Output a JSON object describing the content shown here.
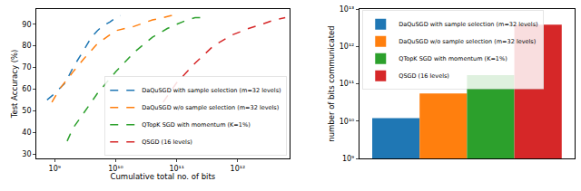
{
  "chart_data": [
    {
      "type": "line",
      "x_label": "Cumulative total no. of bits",
      "y_label": "Test Accuracy (%)",
      "log": "x",
      "grid": false,
      "legend": "lower right",
      "line_style": "dashed",
      "xlim": [
        500000000,
        7000000000000
      ],
      "xticks": [
        {
          "value": 1000000000,
          "label": "10⁹"
        },
        {
          "value": 10000000000,
          "label": "10¹⁰"
        },
        {
          "value": 100000000000,
          "label": "10¹¹"
        },
        {
          "value": 1000000000000,
          "label": "10¹²"
        }
      ],
      "ylim": [
        28,
        97
      ],
      "yticks": [
        30,
        40,
        50,
        60,
        70,
        80,
        90
      ],
      "series": [
        {
          "name": "DaQuSGD with sample selection (m=32 levels)",
          "color": "#1f77b4",
          "x": [
            750000000,
            1000000000,
            1500000000,
            2000000000,
            3000000000,
            4000000000,
            5000000000,
            6000000000,
            8000000000,
            10000000000,
            12000000000
          ],
          "values": [
            55,
            58,
            63,
            70,
            78,
            84,
            87,
            89,
            91,
            93,
            94
          ]
        },
        {
          "name": "DaQuSGD w/o sample selection (m=32 levels)",
          "color": "#ff7f0e",
          "x": [
            900000000,
            1200000000,
            2000000000,
            3000000000,
            5000000000,
            8000000000,
            10000000000,
            20000000000,
            40000000000,
            60000000000,
            80000000000,
            110000000000
          ],
          "values": [
            54,
            60,
            68,
            74,
            81,
            85,
            87,
            89,
            92,
            93,
            94,
            94
          ]
        },
        {
          "name": "QTopK SGD with momentum (K=1%)",
          "color": "#2ca02c",
          "x": [
            1600000000,
            2000000000,
            3000000000,
            5000000000,
            10000000000,
            20000000000,
            40000000000,
            70000000000,
            100000000000,
            150000000000,
            200000000000,
            250000000000
          ],
          "values": [
            36,
            42,
            49,
            58,
            68,
            77,
            84,
            88,
            90,
            92,
            93,
            93
          ]
        },
        {
          "name": "QSGD (16 levels)",
          "color": "#d62728",
          "x": [
            60000000000,
            100000000000,
            200000000000,
            400000000000,
            800000000000,
            1500000000000,
            2500000000000,
            4000000000000,
            6000000000000
          ],
          "values": [
            54,
            63,
            72,
            80,
            85,
            88,
            90,
            92,
            93
          ]
        }
      ]
    },
    {
      "type": "bar",
      "y_label": "number of bits communicated",
      "log": "y",
      "grid": false,
      "legend": "upper left",
      "tick_labels": "y",
      "categories": [
        null
      ],
      "ylim": [
        1000000000,
        10000000000000
      ],
      "yticks": [
        {
          "value": 1000000000,
          "label": "10⁹"
        },
        {
          "value": 10000000000,
          "label": "10¹⁰"
        },
        {
          "value": 100000000000,
          "label": "10¹¹"
        },
        {
          "value": 1000000000000,
          "label": "10¹²"
        },
        {
          "value": 10000000000000,
          "label": "10¹³"
        }
      ],
      "series": [
        {
          "name": "DaQuSGD with sample selection (m=32 levels)",
          "color": "#1f77b4",
          "values": [
            12000000000
          ]
        },
        {
          "name": "DaQuSGD w/o sample selection (m=32 levels)",
          "color": "#ff7f0e",
          "values": [
            55000000000
          ]
        },
        {
          "name": "QTopK SGD with momentum (K=1%)",
          "color": "#2ca02c",
          "values": [
            170000000000
          ]
        },
        {
          "name": "QSGD (16 levels)",
          "color": "#d62728",
          "values": [
            3800000000000
          ]
        }
      ]
    }
  ]
}
